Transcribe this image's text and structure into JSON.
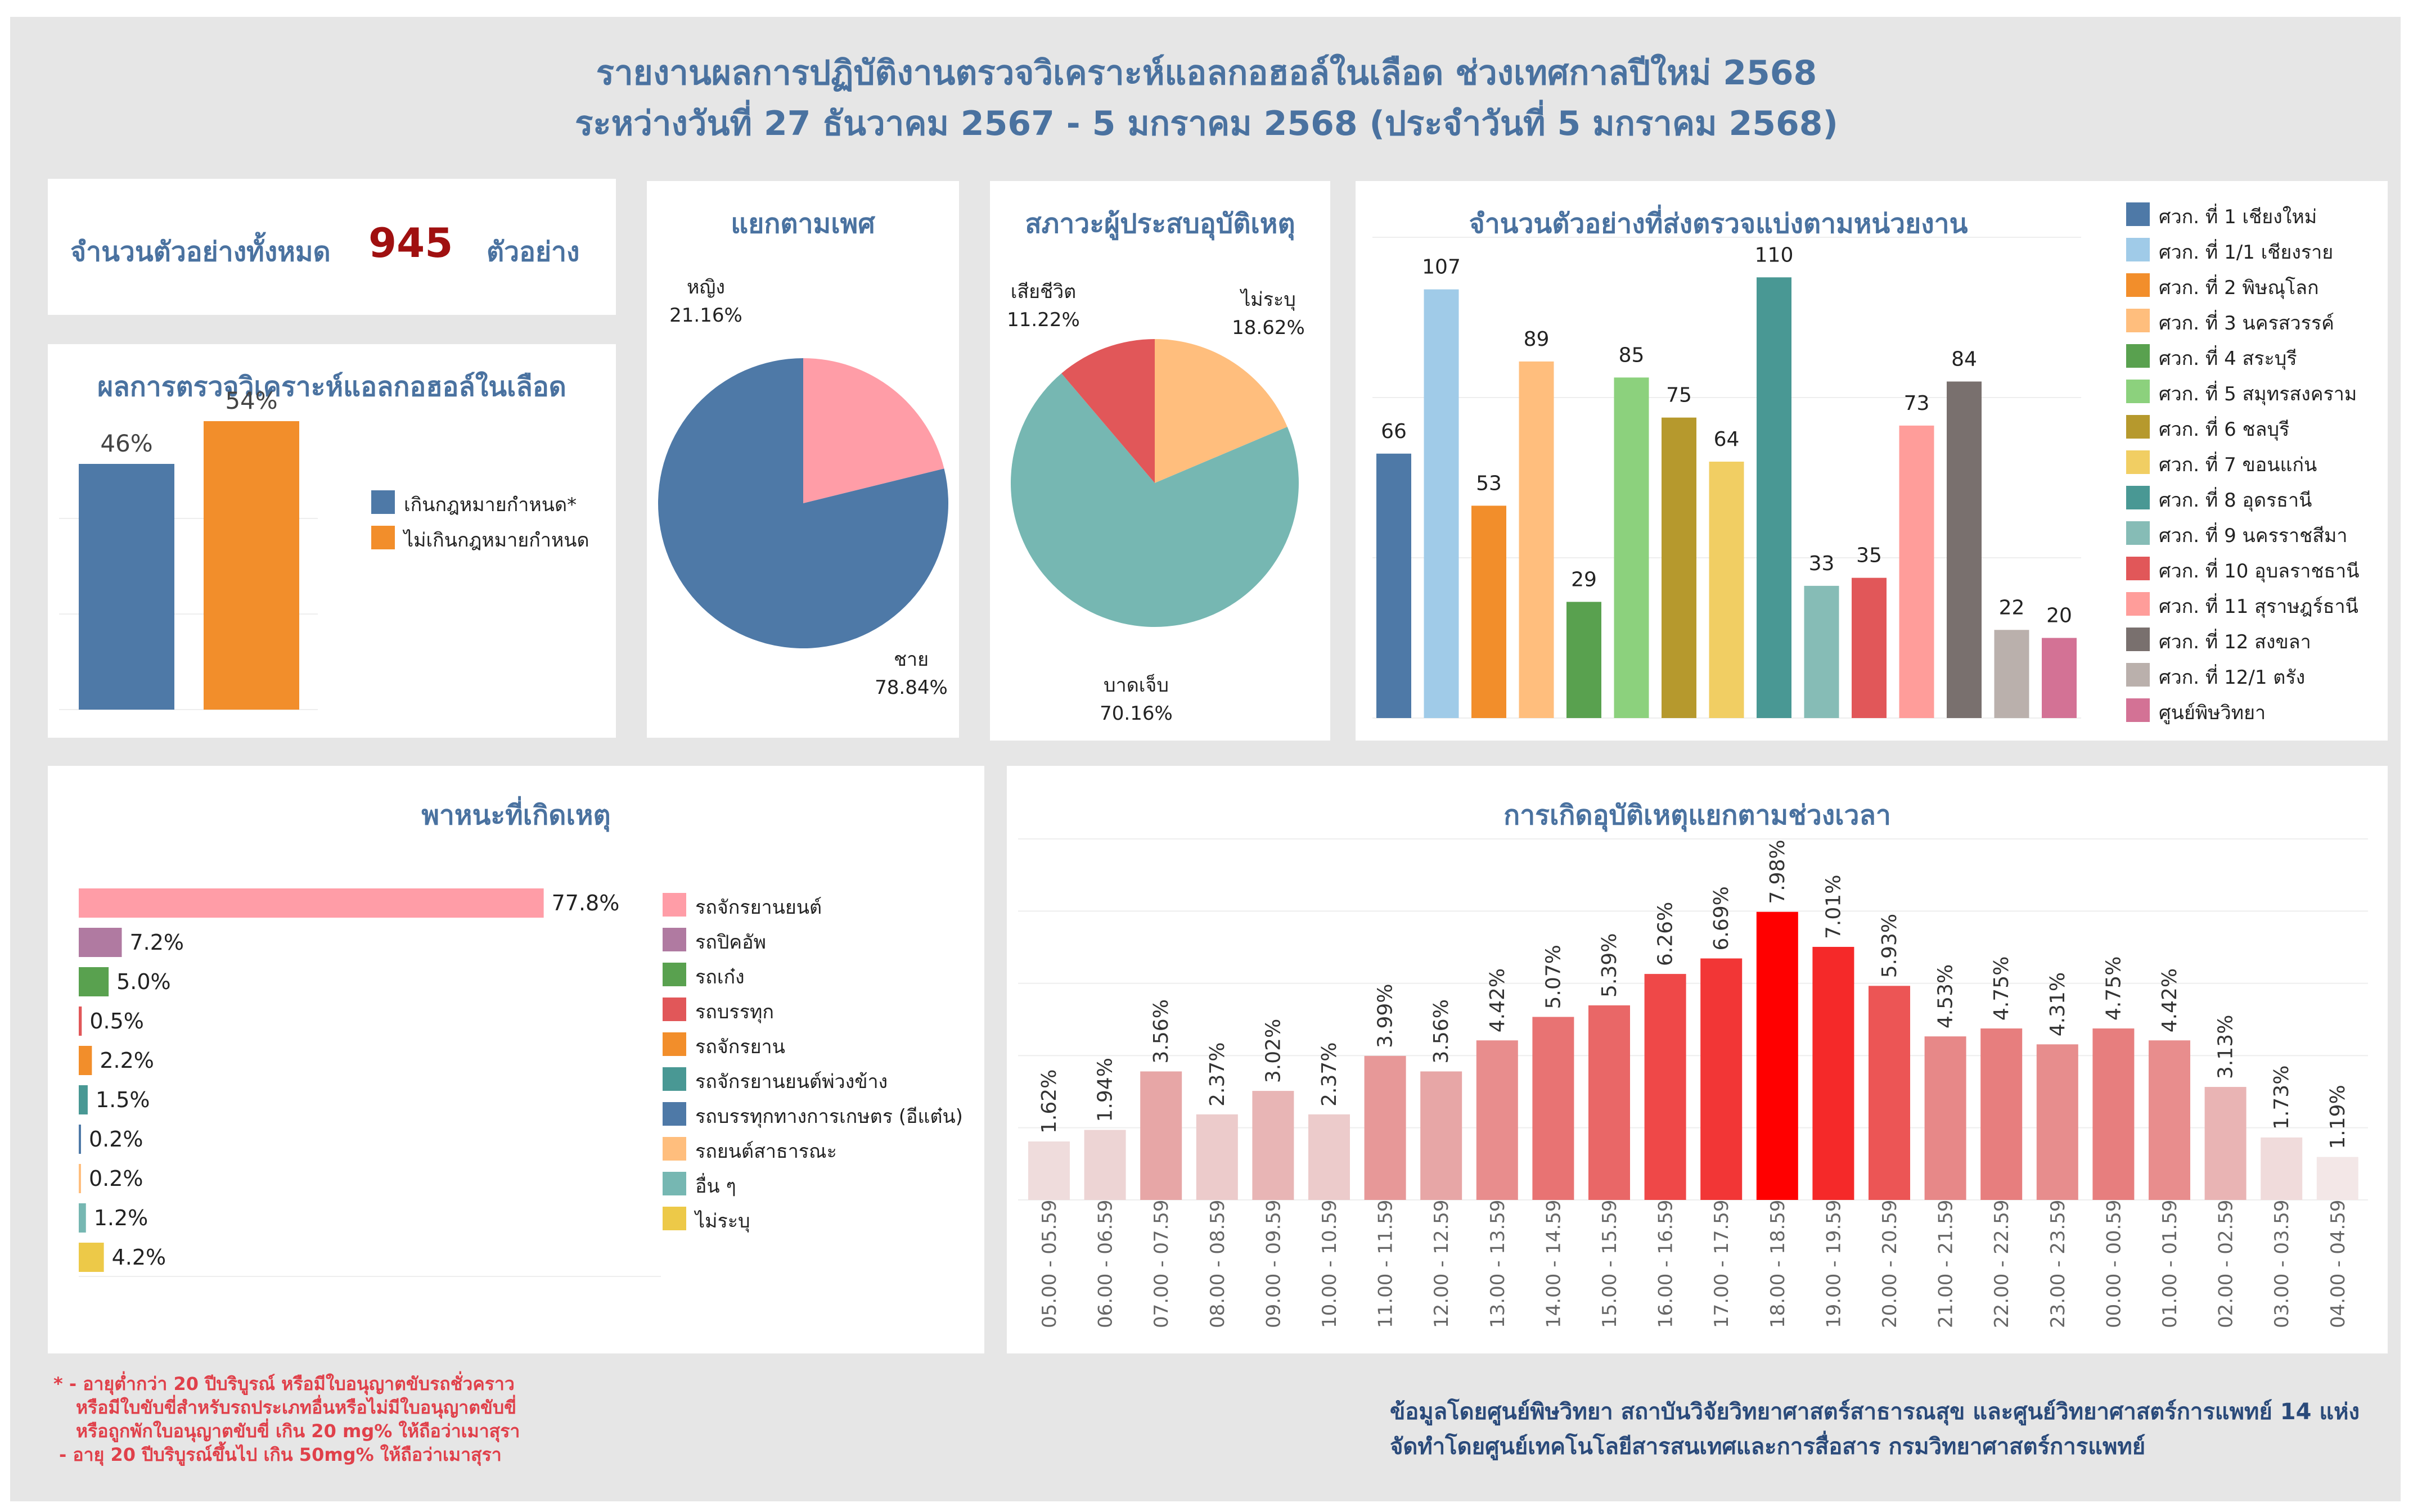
{
  "header": {
    "title_line1": "รายงานผลการปฏิบัติงานตรวจวิเคราะห์แอลกอฮอล์ในเลือด ช่วงเทศกาลปีใหม่ 2568",
    "title_line2": "ระหว่างวันที่ 27 ธันวาคม 2567 - 5 มกราคม 2568 (ประจำวันที่ 5 มกราคม 2568)"
  },
  "total": {
    "label": "จำนวนตัวอย่างทั้งหมด",
    "value": "945",
    "unit": "ตัวอย่าง"
  },
  "colors": {
    "title": "#4a72a0",
    "total_value": "#a01010",
    "footnote": "#e0404a"
  },
  "result_panel": {
    "title": "ผลการตรวจวิเคราะห์แอลกอฮอล์ในเลือด"
  },
  "gender_panel": {
    "title": "แยกตามเพศ"
  },
  "status_panel": {
    "title": "สภาวะผู้ประสบอุบัติเหตุ"
  },
  "unit_panel": {
    "title": "จำนวนตัวอย่างที่ส่งตรวจแบ่งตามหน่วยงาน"
  },
  "vehicle_panel": {
    "title": "พาหนะที่เกิดเหตุ"
  },
  "time_panel": {
    "title": "การเกิดอุบัติเหตุแยกตามช่วงเวลา"
  },
  "chart_data": [
    {
      "id": "result",
      "type": "bar",
      "categories": [
        "เกินกฎหมายกำหนด*",
        "ไม่เกินกฎหมายกำหนด"
      ],
      "values": [
        46,
        54
      ],
      "labels": [
        "46%",
        "54%"
      ],
      "colors": [
        "#4e79a7",
        "#f28e2b"
      ],
      "ylim": [
        0,
        60
      ],
      "legend": "right"
    },
    {
      "id": "gender",
      "type": "pie",
      "slices": [
        {
          "name": "หญิง",
          "value": 21.16,
          "label": "21.16%",
          "color": "#ff9da7"
        },
        {
          "name": "ชาย",
          "value": 78.84,
          "label": "78.84%",
          "color": "#4e79a7"
        }
      ]
    },
    {
      "id": "status",
      "type": "pie",
      "slices": [
        {
          "name": "ไม่ระบุ",
          "value": 18.62,
          "label": "18.62%",
          "color": "#ffbe7d"
        },
        {
          "name": "บาดเจ็บ",
          "value": 70.16,
          "label": "70.16%",
          "color": "#76b7b2"
        },
        {
          "name": "เสียชีวิต",
          "value": 11.22,
          "label": "11.22%",
          "color": "#e15759"
        }
      ]
    },
    {
      "id": "units",
      "type": "bar",
      "categories": [
        "ศวก. ที่ 1 เชียงใหม่",
        "ศวก. ที่ 1/1 เชียงราย",
        "ศวก. ที่ 2 พิษณุโลก",
        "ศวก. ที่ 3 นครสวรรค์",
        "ศวก. ที่ 4 สระบุรี",
        "ศวก. ที่ 5 สมุทรสงคราม",
        "ศวก. ที่ 6 ชลบุรี",
        "ศวก. ที่ 7 ขอนแก่น",
        "ศวก. ที่ 8 อุดรธานี",
        "ศวก. ที่ 9 นครราชสีมา",
        "ศวก. ที่ 10 อุบลราชธานี",
        "ศวก. ที่ 11 สุราษฎร์ธานี",
        "ศวก. ที่ 12 สงขลา",
        "ศวก. ที่ 12/1 ตรัง",
        "ศูนย์พิษวิทยา"
      ],
      "values": [
        66,
        107,
        53,
        89,
        29,
        85,
        75,
        64,
        110,
        33,
        35,
        73,
        84,
        22,
        20
      ],
      "colors": [
        "#4e79a7",
        "#a0cbe8",
        "#f28e2b",
        "#ffbe7d",
        "#59a14f",
        "#8cd17d",
        "#b6992d",
        "#f1ce63",
        "#499894",
        "#86bcb6",
        "#e15759",
        "#ff9d9a",
        "#79706e",
        "#bab0ac",
        "#d37295"
      ],
      "ylim": [
        0,
        120
      ],
      "legend": "right"
    },
    {
      "id": "vehicles",
      "type": "bar",
      "orientation": "horizontal",
      "categories": [
        "รถจักรยานยนต์",
        "รถปิคอัพ",
        "รถเก๋ง",
        "รถบรรทุก",
        "รถจักรยาน",
        "รถจักรยานยนต์พ่วงข้าง",
        "รถบรรทุกทางการเกษตร (อีแต๋น)",
        "รถยนต์สาธารณะ",
        "อื่น ๆ",
        "ไม่ระบุ"
      ],
      "values": [
        77.8,
        7.2,
        5.0,
        0.5,
        2.2,
        1.5,
        0.2,
        0.2,
        1.2,
        4.2
      ],
      "labels": [
        "77.8%",
        "7.2%",
        "5.0%",
        "0.5%",
        "2.2%",
        "1.5%",
        "0.2%",
        "0.2%",
        "1.2%",
        "4.2%"
      ],
      "colors": [
        "#ff9da7",
        "#b07aa1",
        "#59a14f",
        "#e15759",
        "#f28e2b",
        "#499894",
        "#4e79a7",
        "#ffbe7d",
        "#76b7b2",
        "#edc948"
      ],
      "xlim": [
        0,
        80
      ],
      "legend": "right"
    },
    {
      "id": "time",
      "type": "bar",
      "categories": [
        "05.00 - 05.59",
        "06.00 - 06.59",
        "07.00 - 07.59",
        "08.00 - 08.59",
        "09.00 - 09.59",
        "10.00 - 10.59",
        "11.00 - 11.59",
        "12.00 - 12.59",
        "13.00 - 13.59",
        "14.00 - 14.59",
        "15.00 - 15.59",
        "16.00 - 16.59",
        "17.00 - 17.59",
        "18.00 - 18.59",
        "19.00 - 19.59",
        "20.00 - 20.59",
        "21.00 - 21.59",
        "22.00 - 22.59",
        "23.00 - 23.59",
        "00.00 - 00.59",
        "01.00 - 01.59",
        "02.00 - 02.59",
        "03.00 - 03.59",
        "04.00 - 04.59"
      ],
      "values": [
        1.62,
        1.94,
        3.56,
        2.37,
        3.02,
        2.37,
        3.99,
        3.56,
        4.42,
        5.07,
        5.39,
        6.26,
        6.69,
        7.98,
        7.01,
        5.93,
        4.53,
        4.75,
        4.31,
        4.75,
        4.42,
        3.13,
        1.73,
        1.19
      ],
      "labels": [
        "1.62%",
        "1.94%",
        "3.56%",
        "2.37%",
        "3.02%",
        "2.37%",
        "3.99%",
        "3.56%",
        "4.42%",
        "5.07%",
        "5.39%",
        "6.26%",
        "6.69%",
        "7.98%",
        "7.01%",
        "5.93%",
        "4.53%",
        "4.75%",
        "4.31%",
        "4.75%",
        "4.42%",
        "3.13%",
        "1.73%",
        "1.19%"
      ],
      "ylim": [
        0,
        10
      ]
    }
  ],
  "footnote": {
    "line1": "* - อายุต่ำกว่า 20 ปีบริบูรณ์ หรือมีใบอนุญาตขับรถชั่วคราว",
    "line2": "หรือมีใบขับขี่สำหรับรถประเภทอื่นหรือไม่มีใบอนุญาตขับขี่",
    "line3": "หรือถูกพักใบอนุญาตขับขี่ เกิน 20 mg% ให้ถือว่าเมาสุรา",
    "line4": "- อายุ 20 ปีบริบูรณ์ขึ้นไป เกิน 50mg% ให้ถือว่าเมาสุรา"
  },
  "credit": {
    "line1": "ข้อมูลโดยศูนย์พิษวิทยา สถาบันวิจัยวิทยาศาสตร์สาธารณสุข และศูนย์วิทยาศาสตร์การแพทย์ 14 แห่ง",
    "line2": "จัดทำโดยศูนย์เทคโนโลยีสารสนเทศและการสื่อสาร กรมวิทยาศาสตร์การแพทย์"
  }
}
